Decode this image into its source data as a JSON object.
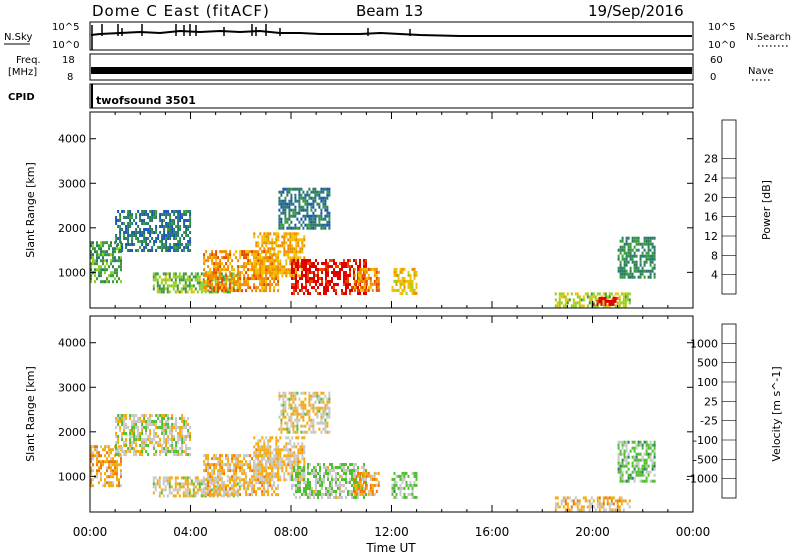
{
  "header": {
    "station": "Dome C East (fitACF)",
    "beam": "Beam 13",
    "date": "19/Sep/2016"
  },
  "top_panels": {
    "nsky_label": "N.Sky",
    "nsky_ticks": [
      "10^5",
      "10^0"
    ],
    "nsearch_label": "N.Search",
    "nsearch_ticks": [
      "10^5",
      "10^0"
    ],
    "freq_label": "Freq.",
    "freq_unit": "[MHz]",
    "freq_ticks": [
      "18",
      "8"
    ],
    "nave_label": "Nave",
    "nave_ticks": [
      "60",
      "0"
    ],
    "cpid_label": "CPID",
    "cpid_value": "twofsound 3501"
  },
  "colors": {
    "power_scale": [
      "#2020e0",
      "#1a55b8",
      "#2a7a6a",
      "#3a9a40",
      "#90d020",
      "#f0c000",
      "#f08c00",
      "#e84800",
      "#e00000"
    ],
    "velocity_scale": [
      "#e00000",
      "#e84000",
      "#f07a00",
      "#f4aa10",
      "#c8c8c8",
      "#50c030",
      "#2a8060",
      "#2050b0",
      "#1010c0"
    ]
  },
  "chart_data": [
    {
      "type": "heatmap",
      "name": "power",
      "ylabel": "Slant Range [km]",
      "yticks": [
        "1000",
        "2000",
        "3000",
        "4000"
      ],
      "ylim": [
        200,
        4600
      ],
      "xlim": [
        "00:00",
        "24:00"
      ],
      "colorbar_label": "Power [dB]",
      "colorbar_ticks": [
        "4",
        "8",
        "12",
        "16",
        "20",
        "24",
        "28"
      ],
      "clim": [
        0,
        30
      ],
      "regions": [
        {
          "t0": 0.0,
          "t1": 1.2,
          "r0": 800,
          "r1": 1700,
          "value": 12
        },
        {
          "t0": 1.0,
          "t1": 4.0,
          "r0": 1500,
          "r1": 2400,
          "value": 8
        },
        {
          "t0": 2.5,
          "t1": 6.0,
          "r0": 550,
          "r1": 1000,
          "value": 14
        },
        {
          "t0": 4.5,
          "t1": 7.5,
          "r0": 600,
          "r1": 1500,
          "value": 22
        },
        {
          "t0": 6.5,
          "t1": 8.5,
          "r0": 900,
          "r1": 1900,
          "value": 20
        },
        {
          "t0": 8.0,
          "t1": 11.0,
          "r0": 550,
          "r1": 1300,
          "value": 28
        },
        {
          "t0": 10.5,
          "t1": 11.5,
          "r0": 600,
          "r1": 1100,
          "value": 22
        },
        {
          "t0": 12.0,
          "t1": 13.0,
          "r0": 550,
          "r1": 1100,
          "value": 18
        },
        {
          "t0": 18.5,
          "t1": 21.5,
          "r0": 250,
          "r1": 550,
          "value": 16
        },
        {
          "t0": 20.0,
          "t1": 21.0,
          "r0": 250,
          "r1": 450,
          "value": 28
        },
        {
          "t0": 21.0,
          "t1": 22.5,
          "r0": 900,
          "r1": 1800,
          "value": 10
        },
        {
          "t0": 7.5,
          "t1": 9.5,
          "r0": 2000,
          "r1": 2900,
          "value": 8
        }
      ]
    },
    {
      "type": "heatmap",
      "name": "velocity",
      "ylabel": "Slant Range [km]",
      "yticks": [
        "1000",
        "2000",
        "3000",
        "4000"
      ],
      "ylim": [
        200,
        4600
      ],
      "xticks": [
        "00:00",
        "04:00",
        "08:00",
        "12:00",
        "16:00",
        "20:00",
        "00:00"
      ],
      "xlim": [
        "00:00",
        "24:00"
      ],
      "xlabel": "Time UT",
      "colorbar_label": "Velocity [m s^-1]",
      "colorbar_ticks": [
        "-1000",
        "-500",
        "-100",
        "-25",
        "25",
        "100",
        "500",
        "1000"
      ],
      "clim": [
        -1200,
        1200
      ],
      "regions": [
        {
          "t0": 0.0,
          "t1": 1.2,
          "r0": 800,
          "r1": 1700,
          "value": -300
        },
        {
          "t0": 1.0,
          "t1": 4.0,
          "r0": 1500,
          "r1": 2400,
          "value": 0
        },
        {
          "t0": 2.5,
          "t1": 6.0,
          "r0": 550,
          "r1": 1000,
          "value": -80
        },
        {
          "t0": 4.5,
          "t1": 7.5,
          "r0": 600,
          "r1": 1500,
          "value": -200
        },
        {
          "t0": 6.5,
          "t1": 8.5,
          "r0": 900,
          "r1": 1900,
          "value": -150
        },
        {
          "t0": 8.0,
          "t1": 11.0,
          "r0": 550,
          "r1": 1300,
          "value": 120
        },
        {
          "t0": 10.5,
          "t1": 11.5,
          "r0": 600,
          "r1": 1100,
          "value": -300
        },
        {
          "t0": 12.0,
          "t1": 13.0,
          "r0": 550,
          "r1": 1100,
          "value": 150
        },
        {
          "t0": 18.5,
          "t1": 21.5,
          "r0": 250,
          "r1": 550,
          "value": -200
        },
        {
          "t0": 21.0,
          "t1": 22.5,
          "r0": 900,
          "r1": 1800,
          "value": 200
        },
        {
          "t0": 7.5,
          "t1": 9.5,
          "r0": 2000,
          "r1": 2900,
          "value": -90
        }
      ]
    }
  ]
}
